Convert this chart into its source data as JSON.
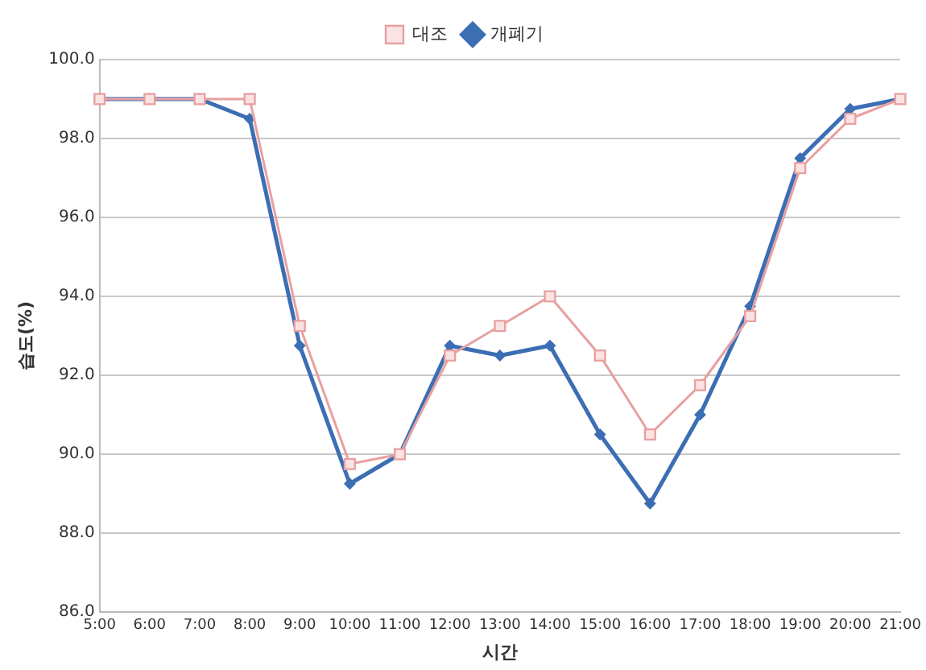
{
  "chart_data": {
    "type": "line",
    "xlabel": "시간",
    "ylabel": "습도(%)",
    "categories": [
      "5:00",
      "6:00",
      "7:00",
      "8:00",
      "9:00",
      "10:00",
      "11:00",
      "12:00",
      "13:00",
      "14:00",
      "15:00",
      "16:00",
      "17:00",
      "18:00",
      "19:00",
      "20:00",
      "21:00"
    ],
    "series": [
      {
        "name": "개폐기",
        "color": "#3c6eb4",
        "marker": "diamond",
        "values": [
          99,
          99,
          99,
          98.5,
          92.75,
          89.25,
          90,
          92.75,
          92.5,
          92.75,
          90.5,
          88.75,
          91,
          93.75,
          97.5,
          98.75,
          99
        ]
      },
      {
        "name": "대조",
        "color": "#e8a0a0",
        "marker": "square",
        "values": [
          99,
          99,
          99,
          99,
          93.25,
          89.75,
          90,
          92.5,
          93.25,
          94,
          92.5,
          90.5,
          91.75,
          93.5,
          97.25,
          98.5,
          99
        ]
      }
    ],
    "ylim": [
      86,
      100
    ],
    "yticks": [
      {
        "value": 86,
        "label": "86.0"
      },
      {
        "value": 88,
        "label": "88.0"
      },
      {
        "value": 90,
        "label": "90.0"
      },
      {
        "value": 92,
        "label": "92.0"
      },
      {
        "value": 94,
        "label": "94.0"
      },
      {
        "value": 96,
        "label": "96.0"
      },
      {
        "value": 98,
        "label": "98.0"
      },
      {
        "value": 100,
        "label": "100.0"
      }
    ],
    "grid": "y",
    "legend": "top"
  }
}
